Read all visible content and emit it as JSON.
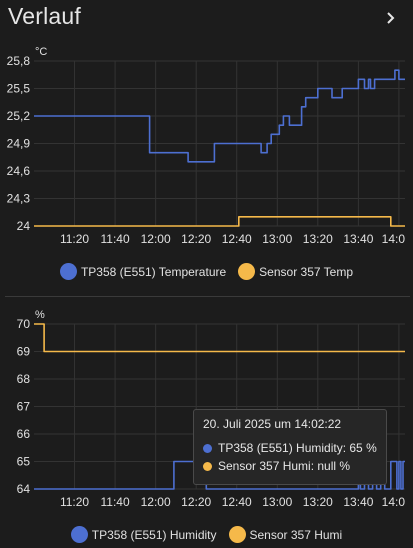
{
  "header": {
    "title": "Verlauf"
  },
  "colors": {
    "blue": "#4d6fd1",
    "yellow": "#f5b94a",
    "grid": "#333333",
    "axis_text": "#e1e1e1"
  },
  "chart_data": [
    {
      "type": "line",
      "ylabel": "°C",
      "ylim": [
        24,
        25.8
      ],
      "yticks": [
        "25,8",
        "25,5",
        "25,2",
        "24,9",
        "24,6",
        "24,3",
        "24"
      ],
      "ytick_values": [
        25.8,
        25.5,
        25.2,
        24.9,
        24.6,
        24.3,
        24.0
      ],
      "x_domain_min": [
        660,
        843
      ],
      "xticks": [
        "11:20",
        "11:40",
        "12:00",
        "12:20",
        "12:40",
        "13:00",
        "13:20",
        "13:40",
        "14:0"
      ],
      "xtick_values": [
        680,
        700,
        720,
        740,
        760,
        780,
        800,
        820,
        840
      ],
      "series": [
        {
          "name": "TP358 (E551) Temperature",
          "color": "#4d6fd1",
          "x": [
            660,
            717,
            717,
            736,
            736,
            749,
            749,
            772,
            772,
            775,
            775,
            777,
            777,
            781,
            781,
            783,
            783,
            786,
            786,
            792,
            792,
            794,
            794,
            797,
            797,
            800,
            800,
            802,
            802,
            804,
            804,
            807,
            807,
            812,
            812,
            814,
            814,
            820,
            820,
            823,
            823,
            825,
            825,
            826,
            826,
            828,
            828,
            830,
            830,
            838,
            838,
            840,
            840,
            843
          ],
          "y": [
            25.2,
            25.2,
            24.8,
            24.8,
            24.7,
            24.7,
            24.9,
            24.9,
            24.8,
            24.8,
            24.9,
            24.9,
            25.0,
            25.0,
            25.1,
            25.1,
            25.2,
            25.2,
            25.1,
            25.1,
            25.3,
            25.3,
            25.4,
            25.4,
            25.4,
            25.4,
            25.5,
            25.5,
            25.5,
            25.5,
            25.5,
            25.5,
            25.4,
            25.4,
            25.5,
            25.5,
            25.5,
            25.5,
            25.6,
            25.6,
            25.5,
            25.5,
            25.6,
            25.6,
            25.5,
            25.5,
            25.6,
            25.6,
            25.6,
            25.6,
            25.7,
            25.7,
            25.6,
            25.6
          ]
        },
        {
          "name": "Sensor 357 Temp",
          "color": "#f5b94a",
          "x": [
            660,
            761,
            761,
            836,
            836,
            843
          ],
          "y": [
            24.0,
            24.0,
            24.1,
            24.1,
            24.0,
            24.0
          ]
        }
      ]
    },
    {
      "type": "line",
      "ylabel": "%",
      "ylim": [
        64,
        70
      ],
      "yticks": [
        "70",
        "69",
        "68",
        "67",
        "66",
        "65",
        "64"
      ],
      "ytick_values": [
        70,
        69,
        68,
        67,
        66,
        65,
        64
      ],
      "x_domain_min": [
        660,
        843
      ],
      "xticks": [
        "11:20",
        "11:40",
        "12:00",
        "12:20",
        "12:40",
        "13:00",
        "13:20",
        "13:40",
        "14:0"
      ],
      "xtick_values": [
        680,
        700,
        720,
        740,
        760,
        780,
        800,
        820,
        840
      ],
      "series": [
        {
          "name": "TP358 (E551) Humidity",
          "color": "#4d6fd1",
          "x": [
            660,
            729,
            729,
            745,
            745,
            820,
            820,
            821,
            821,
            823,
            823,
            825,
            825,
            827,
            827,
            829,
            829,
            831,
            831,
            833,
            833,
            836,
            836,
            839,
            839,
            840,
            840,
            841,
            841,
            842,
            842,
            843
          ],
          "y": [
            64,
            64,
            65,
            65,
            64,
            64,
            65,
            65,
            64,
            64,
            65,
            65,
            64,
            64,
            65,
            65,
            64,
            64,
            65,
            65,
            64,
            64,
            65,
            65,
            64,
            64,
            65,
            65,
            64,
            64,
            65,
            65
          ]
        },
        {
          "name": "Sensor 357 Humi",
          "color": "#f5b94a",
          "x": [
            660,
            665,
            665,
            843
          ],
          "y": [
            70,
            70,
            69,
            69
          ]
        }
      ]
    }
  ],
  "tooltip": {
    "title": "20. Juli 2025 um 14:02:22",
    "row1": "TP358 (E551) Humidity: 65 %",
    "row2": "Sensor 357 Humi: null %",
    "cursor_x_min": 842
  },
  "legend1": {
    "item1": "TP358 (E551) Temperature",
    "item2": "Sensor 357 Temp"
  },
  "legend2": {
    "item1": "TP358 (E551) Humidity",
    "item2": "Sensor 357 Humi"
  }
}
